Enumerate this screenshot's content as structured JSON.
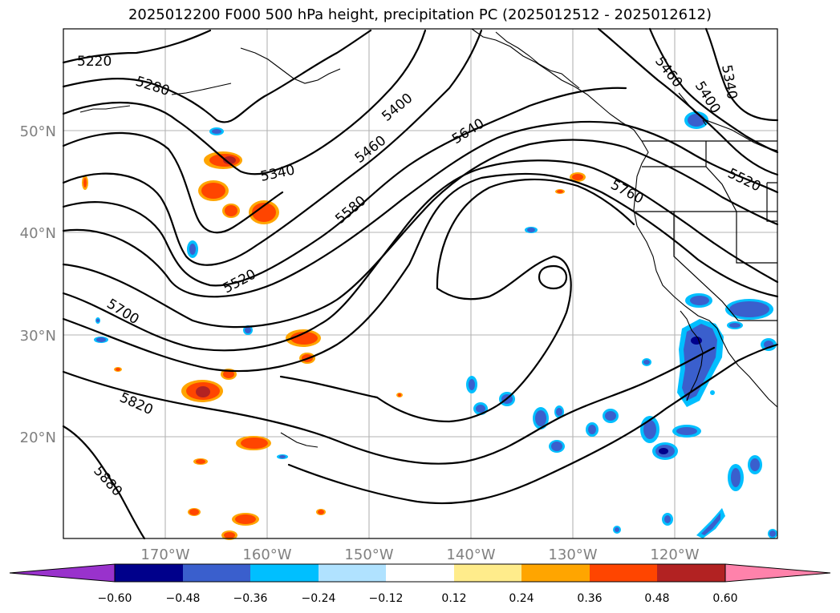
{
  "title": "2025012200 F000 500 hPa height, precipitation PC (2025012512 - 2025012612)",
  "map": {
    "lat_ticks": [
      "20°N",
      "30°N",
      "40°N",
      "50°N"
    ],
    "lon_ticks": [
      "170°W",
      "160°W",
      "150°W",
      "140°W",
      "130°W",
      "120°W"
    ],
    "extent": {
      "lon": [
        "180°",
        "110°W"
      ],
      "lat": [
        "10°N",
        "59°N"
      ]
    },
    "grid": true
  },
  "height_contours": {
    "units": "dam-style 500 hPa height (m)",
    "labels": [
      "5220",
      "5280",
      "5340",
      "5400",
      "5460",
      "5520",
      "5580",
      "5640",
      "5700",
      "5760",
      "5820",
      "5880",
      "5340",
      "5400",
      "5460",
      "5520"
    ]
  },
  "precip_blobs": {
    "positive_color": "#FF4500",
    "negative_color": "#3A5FCD"
  },
  "colorbar": {
    "ticks": [
      "−0.60",
      "−0.48",
      "−0.36",
      "−0.24",
      "−0.12",
      "0.12",
      "0.24",
      "0.36",
      "0.48",
      "0.60"
    ],
    "colors": [
      "#9932CC",
      "#00008B",
      "#3A5FCD",
      "#00BFFF",
      "#B0E2FF",
      "#FFFFFF",
      "#FFEC8B",
      "#FFA500",
      "#FF4500",
      "#B22222",
      "#FF82AB"
    ],
    "extend": "both"
  }
}
